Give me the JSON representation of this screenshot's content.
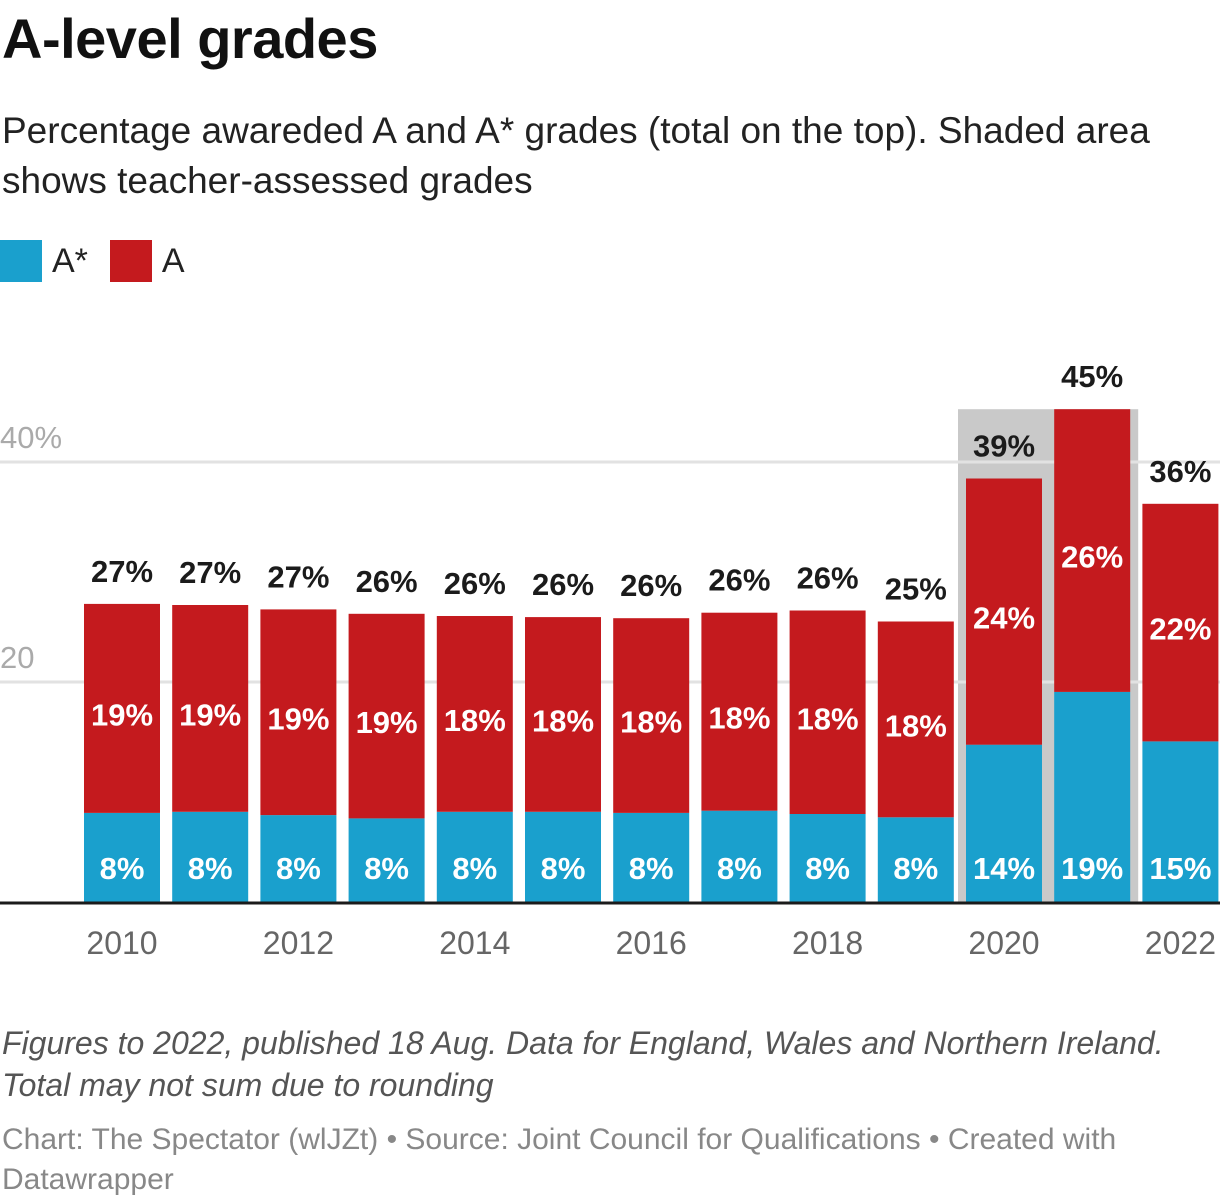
{
  "title": "A-level grades",
  "subtitle": "Percentage awareded A and A* grades (total on the top). Shaded area shows teacher-assessed grades",
  "notes": "Figures to 2022, published 18 Aug. Data for England, Wales and Northern Ireland. Total may not sum due to rounding",
  "credits": "Chart: The Spectator (wlJZt) • Source: Joint Council for Qualifications • Created with Datawrapper",
  "colors": {
    "a_star": "#1aa0cd",
    "a": "#c41a1e",
    "shade": "#c9c9c9",
    "grid": "#e2e2e2",
    "axis": "#1b1b1b"
  },
  "chart_data": {
    "type": "bar",
    "stacked": true,
    "categories": [
      "2010",
      "2011",
      "2012",
      "2013",
      "2014",
      "2015",
      "2016",
      "2017",
      "2018",
      "2019",
      "2020",
      "2021",
      "2022"
    ],
    "series": [
      {
        "name": "A*",
        "key": "a_star",
        "values": [
          8.1,
          8.2,
          7.9,
          7.6,
          8.2,
          8.2,
          8.1,
          8.3,
          8.0,
          7.7,
          14.3,
          19.1,
          14.6
        ],
        "labels": [
          "8%",
          "8%",
          "8%",
          "8%",
          "8%",
          "8%",
          "8%",
          "8%",
          "8%",
          "8%",
          "14%",
          "19%",
          "15%"
        ]
      },
      {
        "name": "A",
        "key": "a",
        "values": [
          19.0,
          18.8,
          18.7,
          18.6,
          17.8,
          17.7,
          17.7,
          18.0,
          18.5,
          17.8,
          24.2,
          25.7,
          21.6
        ],
        "labels": [
          "19%",
          "19%",
          "19%",
          "19%",
          "18%",
          "18%",
          "18%",
          "18%",
          "18%",
          "18%",
          "24%",
          "26%",
          "22%"
        ]
      }
    ],
    "totals": [
      "27%",
      "27%",
      "27%",
      "26%",
      "26%",
      "26%",
      "26%",
      "26%",
      "26%",
      "25%",
      "39%",
      "45%",
      "36%"
    ],
    "x_tick_labels": [
      "2010",
      "2012",
      "2014",
      "2016",
      "2018",
      "2020",
      "2022"
    ],
    "y_ticks": [
      {
        "value": 40,
        "label": "40%"
      },
      {
        "value": 20,
        "label": "20"
      }
    ],
    "ylim": [
      0,
      45
    ],
    "shaded_categories": [
      "2020",
      "2021"
    ],
    "grid": true,
    "legend_position": "top-left"
  }
}
